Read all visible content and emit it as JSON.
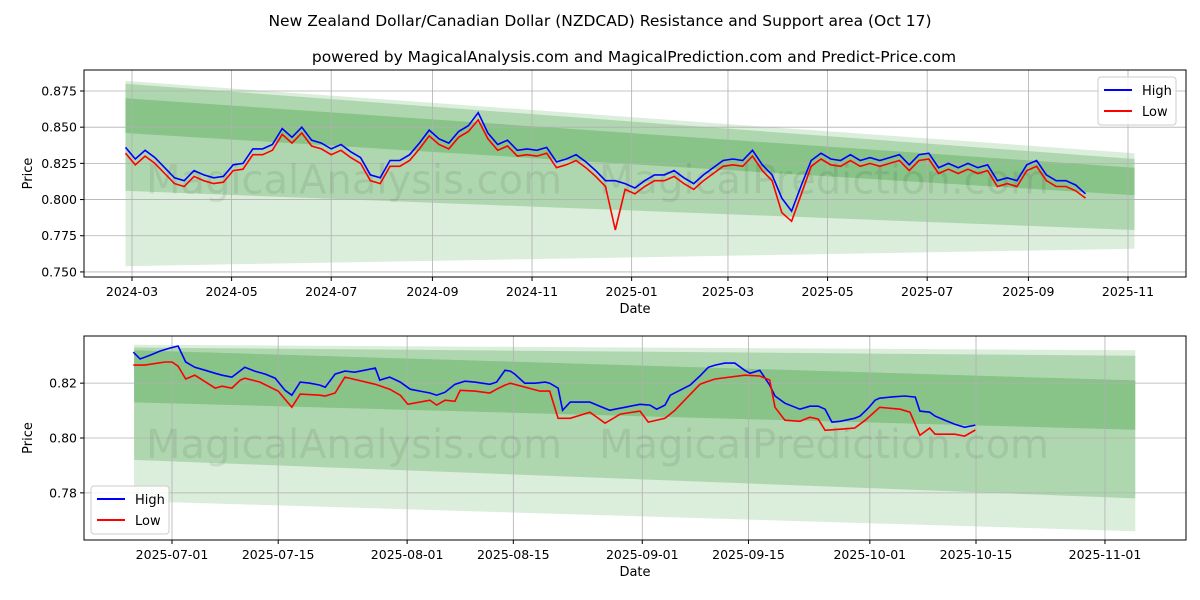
{
  "title": "New Zealand Dollar/Canadian Dollar (NZDCAD) Resistance and Support area (Oct 17)",
  "subtitle": "powered by MagicalAnalysis.com and MagicalPrediction.com and Predict-Price.com",
  "watermarks": [
    "MagicalAnalysis.com",
    "MagicalPrediction.com"
  ],
  "colors": {
    "high": "#0000ff",
    "low": "#ff0000",
    "band": "#008000"
  },
  "chart_data": [
    {
      "type": "line",
      "xlabel": "Date",
      "ylabel": "Price",
      "ylim": [
        0.7465,
        0.8895
      ],
      "yticks": [
        "0.750",
        "0.775",
        "0.800",
        "0.825",
        "0.850",
        "0.875"
      ],
      "xticks": [
        "2024-03",
        "2024-05",
        "2024-07",
        "2024-09",
        "2024-11",
        "2025-01",
        "2025-03",
        "2025-05",
        "2025-07",
        "2025-09",
        "2025-11"
      ],
      "grid": true,
      "legend": {
        "position": "top-right",
        "entries": [
          "High",
          "Low"
        ]
      },
      "series_start": "2024-02-26",
      "step_days": 6,
      "series": [
        {
          "name": "High",
          "values": [
            0.836,
            0.828,
            0.834,
            0.829,
            0.822,
            0.815,
            0.813,
            0.82,
            0.817,
            0.815,
            0.816,
            0.824,
            0.825,
            0.835,
            0.835,
            0.838,
            0.849,
            0.843,
            0.85,
            0.841,
            0.839,
            0.835,
            0.838,
            0.833,
            0.829,
            0.817,
            0.815,
            0.827,
            0.827,
            0.831,
            0.839,
            0.848,
            0.842,
            0.839,
            0.847,
            0.851,
            0.86,
            0.846,
            0.838,
            0.841,
            0.834,
            0.835,
            0.834,
            0.836,
            0.826,
            0.828,
            0.831,
            0.826,
            0.82,
            0.813,
            0.813,
            0.811,
            0.808,
            0.813,
            0.817,
            0.817,
            0.82,
            0.815,
            0.811,
            0.817,
            0.822,
            0.827,
            0.828,
            0.827,
            0.834,
            0.824,
            0.817,
            0.801,
            0.792,
            0.81,
            0.827,
            0.832,
            0.828,
            0.827,
            0.831,
            0.827,
            0.829,
            0.827,
            0.829,
            0.831,
            0.824,
            0.831,
            0.832,
            0.822,
            0.825,
            0.822,
            0.825,
            0.822,
            0.824,
            0.813,
            0.815,
            0.813,
            0.824,
            0.827,
            0.817,
            0.813,
            0.813,
            0.81,
            0.804
          ]
        },
        {
          "name": "Low",
          "values": [
            0.832,
            0.824,
            0.83,
            0.825,
            0.818,
            0.811,
            0.809,
            0.816,
            0.813,
            0.811,
            0.812,
            0.82,
            0.821,
            0.831,
            0.831,
            0.834,
            0.845,
            0.839,
            0.846,
            0.837,
            0.835,
            0.831,
            0.834,
            0.829,
            0.825,
            0.813,
            0.811,
            0.823,
            0.823,
            0.827,
            0.835,
            0.844,
            0.838,
            0.835,
            0.843,
            0.847,
            0.855,
            0.842,
            0.834,
            0.837,
            0.83,
            0.831,
            0.83,
            0.832,
            0.822,
            0.824,
            0.827,
            0.822,
            0.816,
            0.809,
            0.779,
            0.807,
            0.804,
            0.809,
            0.813,
            0.813,
            0.816,
            0.811,
            0.807,
            0.813,
            0.818,
            0.823,
            0.824,
            0.823,
            0.83,
            0.82,
            0.813,
            0.791,
            0.785,
            0.804,
            0.823,
            0.828,
            0.824,
            0.823,
            0.827,
            0.823,
            0.825,
            0.823,
            0.825,
            0.827,
            0.82,
            0.827,
            0.828,
            0.818,
            0.821,
            0.818,
            0.821,
            0.818,
            0.82,
            0.809,
            0.811,
            0.809,
            0.82,
            0.823,
            0.813,
            0.809,
            0.809,
            0.806,
            0.801
          ]
        }
      ],
      "bands": {
        "start": "2024-02-26",
        "end": "2025-11-05",
        "levels": [
          {
            "upper": [
              0.882,
              0.832
            ],
            "lower": [
              0.754,
              0.766
            ]
          },
          {
            "upper": [
              0.88,
              0.828
            ],
            "lower": [
              0.806,
              0.779
            ]
          },
          {
            "upper": [
              0.87,
              0.822
            ],
            "lower": [
              0.846,
              0.803
            ]
          }
        ]
      }
    },
    {
      "type": "line",
      "xlabel": "Date",
      "ylabel": "Price",
      "ylim": [
        0.7628,
        0.8372
      ],
      "yticks": [
        "0.78",
        "0.80",
        "0.82"
      ],
      "xticks": [
        "2025-07-01",
        "2025-07-15",
        "2025-08-01",
        "2025-08-15",
        "2025-09-01",
        "2025-09-15",
        "2025-10-01",
        "2025-10-15",
        "2025-11-01"
      ],
      "grid": true,
      "legend": {
        "position": "bottom-left",
        "entries": [
          "High",
          "Low"
        ]
      },
      "x_origin": "2025-07-01",
      "x_unit": "days",
      "series": [
        {
          "name": "High",
          "points": [
            [
              -5.1,
              0.8313
            ],
            [
              -4.2,
              0.8288
            ],
            [
              -2.9,
              0.8302
            ],
            [
              -1.6,
              0.8317
            ],
            [
              -0.3,
              0.8328
            ],
            [
              0.8,
              0.8335
            ],
            [
              1.8,
              0.8277
            ],
            [
              3,
              0.8258
            ],
            [
              4.4,
              0.8247
            ],
            [
              5.7,
              0.8236
            ],
            [
              6.6,
              0.8229
            ],
            [
              7.9,
              0.8222
            ],
            [
              9.6,
              0.8258
            ],
            [
              10.9,
              0.8244
            ],
            [
              12.3,
              0.8233
            ],
            [
              13.6,
              0.8218
            ],
            [
              14.9,
              0.8174
            ],
            [
              15.8,
              0.8156
            ],
            [
              16.9,
              0.8204
            ],
            [
              18.2,
              0.82
            ],
            [
              19.5,
              0.8193
            ],
            [
              20.2,
              0.8185
            ],
            [
              21.5,
              0.8233
            ],
            [
              22.8,
              0.8244
            ],
            [
              24.1,
              0.824
            ],
            [
              26.8,
              0.8255
            ],
            [
              27.4,
              0.8211
            ],
            [
              28.7,
              0.8222
            ],
            [
              30.1,
              0.8204
            ],
            [
              31.4,
              0.8178
            ],
            [
              32.7,
              0.8171
            ],
            [
              34,
              0.8164
            ],
            [
              34.9,
              0.8156
            ],
            [
              36,
              0.8167
            ],
            [
              37.3,
              0.8196
            ],
            [
              38.6,
              0.8207
            ],
            [
              39.9,
              0.8204
            ],
            [
              41.9,
              0.8196
            ],
            [
              42.8,
              0.8204
            ],
            [
              43.9,
              0.8247
            ],
            [
              44.6,
              0.8244
            ],
            [
              45.2,
              0.8233
            ],
            [
              46.5,
              0.82
            ],
            [
              47.9,
              0.82
            ],
            [
              49.2,
              0.8204
            ],
            [
              49.8,
              0.82
            ],
            [
              50.9,
              0.8182
            ],
            [
              51.5,
              0.8101
            ],
            [
              52.5,
              0.8131
            ],
            [
              55.1,
              0.8131
            ],
            [
              56.4,
              0.8116
            ],
            [
              57.7,
              0.8101
            ],
            [
              58.4,
              0.8105
            ],
            [
              59.7,
              0.8112
            ],
            [
              61.7,
              0.8123
            ],
            [
              63,
              0.812
            ],
            [
              63.9,
              0.8105
            ],
            [
              65,
              0.812
            ],
            [
              65.7,
              0.8156
            ],
            [
              68.3,
              0.8193
            ],
            [
              69.6,
              0.8226
            ],
            [
              70.7,
              0.8258
            ],
            [
              71.6,
              0.8266
            ],
            [
              72.9,
              0.8273
            ],
            [
              74.2,
              0.8273
            ],
            [
              75.5,
              0.8247
            ],
            [
              76.2,
              0.8236
            ],
            [
              77.5,
              0.8247
            ],
            [
              78.8,
              0.8193
            ],
            [
              79.5,
              0.8153
            ],
            [
              80.8,
              0.8127
            ],
            [
              82.8,
              0.8105
            ],
            [
              84.1,
              0.8116
            ],
            [
              85.2,
              0.8116
            ],
            [
              86.1,
              0.8105
            ],
            [
              87,
              0.8058
            ],
            [
              88.1,
              0.8061
            ],
            [
              90,
              0.8072
            ],
            [
              90.7,
              0.808
            ],
            [
              91.8,
              0.8109
            ],
            [
              92.7,
              0.8138
            ],
            [
              93.3,
              0.8145
            ],
            [
              94.7,
              0.8149
            ],
            [
              96.6,
              0.8153
            ],
            [
              98,
              0.8149
            ],
            [
              98.6,
              0.8098
            ],
            [
              99.9,
              0.8094
            ],
            [
              100.6,
              0.808
            ],
            [
              101.9,
              0.8065
            ],
            [
              103.2,
              0.805
            ],
            [
              104.5,
              0.8039
            ],
            [
              105.9,
              0.8047
            ]
          ]
        },
        {
          "name": "Low",
          "points": [
            [
              -5.1,
              0.8266
            ],
            [
              -3.6,
              0.8266
            ],
            [
              -0.9,
              0.8277
            ],
            [
              0,
              0.8277
            ],
            [
              0.8,
              0.8262
            ],
            [
              1.8,
              0.8215
            ],
            [
              3,
              0.8229
            ],
            [
              5.7,
              0.8182
            ],
            [
              6.6,
              0.8189
            ],
            [
              7.9,
              0.8182
            ],
            [
              9,
              0.8211
            ],
            [
              9.6,
              0.8218
            ],
            [
              11.6,
              0.8204
            ],
            [
              14,
              0.8171
            ],
            [
              15.8,
              0.8112
            ],
            [
              16.9,
              0.816
            ],
            [
              19.5,
              0.8156
            ],
            [
              20.2,
              0.8153
            ],
            [
              21.5,
              0.8164
            ],
            [
              22.8,
              0.8222
            ],
            [
              26.8,
              0.8196
            ],
            [
              28.7,
              0.8178
            ],
            [
              30.1,
              0.8156
            ],
            [
              31.1,
              0.8123
            ],
            [
              34,
              0.8138
            ],
            [
              34.9,
              0.812
            ],
            [
              36,
              0.8138
            ],
            [
              37.3,
              0.8134
            ],
            [
              38,
              0.8174
            ],
            [
              39.9,
              0.8171
            ],
            [
              41.9,
              0.8164
            ],
            [
              42.8,
              0.8178
            ],
            [
              43.9,
              0.8193
            ],
            [
              44.6,
              0.82
            ],
            [
              48.5,
              0.8171
            ],
            [
              49.8,
              0.8171
            ],
            [
              50.9,
              0.8072
            ],
            [
              52.5,
              0.8072
            ],
            [
              55.1,
              0.8094
            ],
            [
              57.1,
              0.8054
            ],
            [
              59.1,
              0.8087
            ],
            [
              61.7,
              0.8098
            ],
            [
              62.8,
              0.8058
            ],
            [
              65,
              0.8072
            ],
            [
              66.3,
              0.8101
            ],
            [
              69.6,
              0.8196
            ],
            [
              70.7,
              0.8207
            ],
            [
              71.6,
              0.8215
            ],
            [
              75.5,
              0.8229
            ],
            [
              77.5,
              0.8226
            ],
            [
              78.8,
              0.8211
            ],
            [
              79.5,
              0.8112
            ],
            [
              80.8,
              0.8065
            ],
            [
              82.8,
              0.8061
            ],
            [
              84.1,
              0.8076
            ],
            [
              85.2,
              0.8069
            ],
            [
              86.1,
              0.8028
            ],
            [
              88.1,
              0.8032
            ],
            [
              90,
              0.8036
            ],
            [
              91.4,
              0.8065
            ],
            [
              93.3,
              0.8112
            ],
            [
              96,
              0.8105
            ],
            [
              97.3,
              0.8094
            ],
            [
              98.6,
              0.801
            ],
            [
              99.9,
              0.8036
            ],
            [
              100.6,
              0.8014
            ],
            [
              103.2,
              0.8014
            ],
            [
              104.5,
              0.8007
            ],
            [
              105.9,
              0.8029
            ]
          ]
        }
      ],
      "bands": {
        "start_day": -5,
        "end_day": 127,
        "levels": [
          {
            "upper": [
              0.834,
              0.832
            ],
            "lower": [
              0.777,
              0.766
            ]
          },
          {
            "upper": [
              0.833,
              0.83
            ],
            "lower": [
              0.792,
              0.778
            ]
          },
          {
            "upper": [
              0.832,
              0.821
            ],
            "lower": [
              0.813,
              0.803
            ]
          }
        ]
      }
    }
  ]
}
